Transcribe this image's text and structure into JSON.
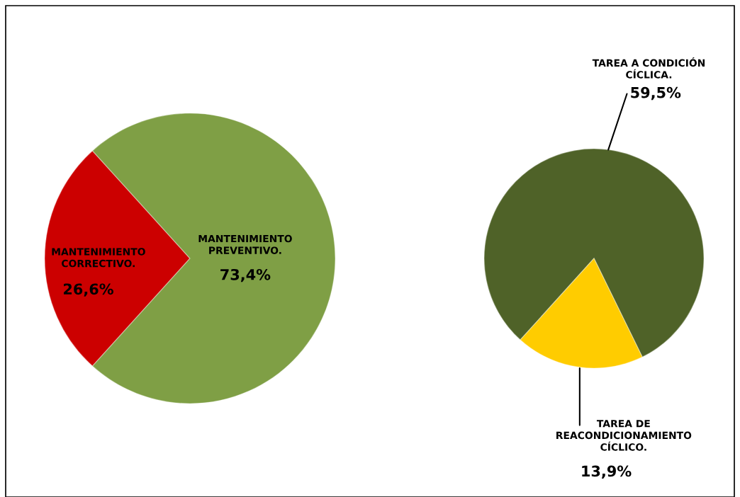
{
  "chart_data": [
    {
      "type": "pie",
      "categories": [
        "MANTENIMIENTO CORRECTIVO.",
        "MANTENIMIENTO PREVENTIVO."
      ],
      "values": [
        26.6,
        73.4
      ],
      "colors": [
        "#cc0000",
        "#7f9f45"
      ],
      "value_labels": [
        "26,6%",
        "73,4%"
      ]
    },
    {
      "type": "pie",
      "categories": [
        "TAREA A CONDICIÓN CÍCLICA.",
        "TAREA DE REACONDICIONAMIENTO CÍCLICO."
      ],
      "values": [
        59.5,
        13.9
      ],
      "colors": [
        "#4f6228",
        "#ffcc00"
      ],
      "value_labels": [
        "59,5%",
        "13,9%"
      ]
    }
  ]
}
